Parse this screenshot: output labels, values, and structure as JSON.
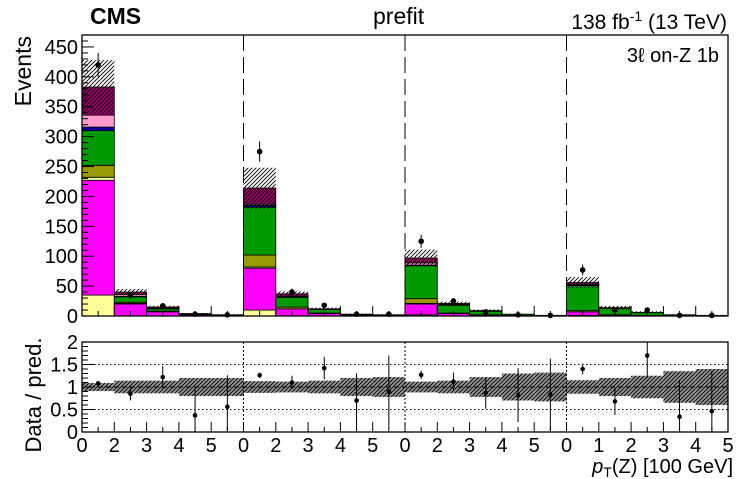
{
  "header": {
    "experiment": "CMS",
    "stage": "prefit",
    "lumi_value": "138 fb",
    "lumi_exponent": "-1",
    "lumi_energy": "(13 TeV)"
  },
  "region_label": "3ℓ  on-Z 1b",
  "colors": {
    "magenta": "#ff00ff",
    "yellow": "#ffff99",
    "olive": "#999900",
    "green": "#009900",
    "navy": "#000099",
    "pink": "#ff99cc",
    "mauve": "#990066"
  },
  "chart_data": {
    "type": "bar",
    "stacked": true,
    "ylabel": "Events",
    "ratio_ylabel": "Data / pred.",
    "xlabel_symbol": "p",
    "xlabel_subscript": "T",
    "xlabel_rest": "(Z) [100 GeV]",
    "ylim": [
      0,
      470
    ],
    "yticks": [
      0,
      50,
      100,
      150,
      200,
      250,
      300,
      350,
      400,
      450
    ],
    "ratio_ylim": [
      0,
      2
    ],
    "ratio_yticks": [
      "0",
      "0.5",
      "1",
      "1.5",
      "2"
    ],
    "panel_xtick_labels": [
      "0",
      "2",
      "3",
      "4",
      "5"
    ],
    "last_panel_xtick_labels": [
      "0",
      "1",
      "2",
      "3",
      "4",
      "5"
    ],
    "panels": 4,
    "bins_per_panel": 5,
    "series": [
      {
        "color_key": "yellow",
        "values": [
          35,
          0,
          0,
          0,
          0,
          10,
          0,
          0,
          0,
          0,
          2,
          0,
          0,
          0,
          0,
          1,
          0,
          0,
          0,
          0
        ]
      },
      {
        "color_key": "magenta",
        "values": [
          192,
          20,
          7,
          2,
          1,
          70,
          12,
          4,
          1,
          1,
          18,
          4,
          2,
          1,
          0,
          6,
          2,
          1,
          0,
          0
        ]
      },
      {
        "color_key": "yellow",
        "values": [
          5,
          1,
          0,
          0,
          0,
          2,
          0,
          0,
          0,
          0,
          1,
          0,
          0,
          0,
          0,
          0,
          0,
          0,
          0,
          0
        ]
      },
      {
        "color_key": "olive",
        "values": [
          20,
          2,
          1,
          0,
          0,
          20,
          3,
          1,
          0,
          0,
          8,
          1,
          0,
          0,
          0,
          2,
          0,
          0,
          0,
          0
        ]
      },
      {
        "color_key": "green",
        "values": [
          58,
          9,
          4,
          1,
          1,
          80,
          16,
          6,
          1,
          1,
          55,
          13,
          6,
          2,
          1,
          42,
          11,
          5,
          2,
          1
        ]
      },
      {
        "color_key": "navy",
        "values": [
          6,
          1,
          0,
          0,
          0,
          3,
          1,
          0,
          0,
          0,
          1,
          0,
          0,
          0,
          0,
          1,
          0,
          0,
          0,
          0
        ]
      },
      {
        "color_key": "pink",
        "values": [
          20,
          3,
          1,
          0,
          0,
          2,
          1,
          0,
          0,
          0,
          4,
          1,
          0,
          0,
          0,
          1,
          0,
          0,
          0,
          0
        ]
      },
      {
        "color_key": "mauve",
        "values": [
          47,
          4,
          2,
          1,
          0,
          27,
          4,
          1,
          1,
          0,
          8,
          2,
          1,
          0,
          0,
          3,
          1,
          0,
          0,
          0
        ]
      }
    ],
    "uncertainty": [
      45,
      5,
      2,
      1,
      1,
      34,
      4,
      2,
      1,
      1,
      14,
      3,
      2,
      1,
      1,
      9,
      3,
      2,
      1,
      1
    ],
    "data": [
      420,
      35,
      17,
      3,
      2,
      275,
      40,
      18,
      3,
      3,
      125,
      25,
      7,
      2,
      1,
      77,
      10,
      10,
      1,
      1
    ],
    "data_err": [
      20,
      6,
      4,
      2,
      1.5,
      17,
      6,
      4,
      2,
      2,
      11,
      5,
      3,
      1.5,
      1,
      9,
      3,
      3,
      1,
      1
    ],
    "ratio": [
      1.08,
      0.85,
      1.22,
      0.37,
      0.56,
      1.26,
      1.1,
      1.42,
      0.7,
      0.9,
      1.27,
      1.12,
      0.87,
      0.82,
      0.83,
      1.4,
      0.68,
      1.7,
      0.34,
      0.46
    ],
    "ratio_err": [
      0.05,
      0.15,
      0.25,
      0.6,
      0.7,
      0.06,
      0.15,
      0.25,
      0.6,
      0.8,
      0.09,
      0.2,
      0.35,
      0.6,
      0.8,
      0.12,
      0.3,
      0.5,
      0.8,
      0.9
    ],
    "ratio_band": [
      0.09,
      0.14,
      0.14,
      0.2,
      0.2,
      0.13,
      0.12,
      0.14,
      0.2,
      0.22,
      0.12,
      0.14,
      0.22,
      0.3,
      0.32,
      0.15,
      0.2,
      0.25,
      0.35,
      0.4
    ]
  }
}
